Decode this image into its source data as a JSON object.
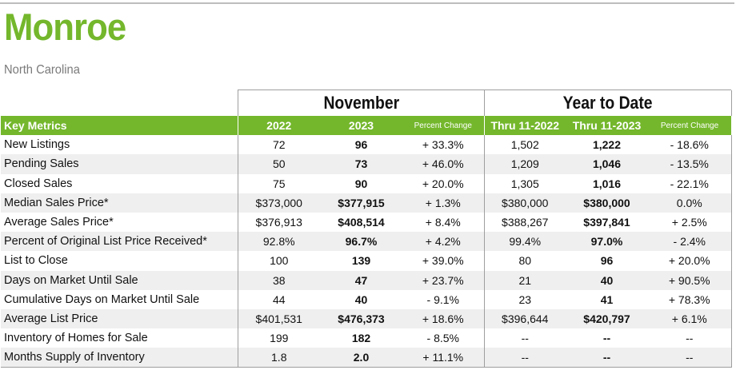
{
  "title": "Monroe",
  "subtitle": "North Carolina",
  "groups": {
    "month": "November",
    "ytd": "Year to Date"
  },
  "columns": {
    "key": "Key Metrics",
    "y2022": "2022",
    "y2023": "2023",
    "pct": "Percent Change",
    "ytd2022": "Thru 11-2022",
    "ytd2023": "Thru 11-2023",
    "ytd_pct": "Percent Change"
  },
  "rows": [
    {
      "label": "New Listings",
      "v2022": "72",
      "v2023": "96",
      "pct": "+ 33.3%",
      "ytd2022": "1,502",
      "ytd2023": "1,222",
      "ytd_pct": "- 18.6%"
    },
    {
      "label": "Pending Sales",
      "v2022": "50",
      "v2023": "73",
      "pct": "+ 46.0%",
      "ytd2022": "1,209",
      "ytd2023": "1,046",
      "ytd_pct": "- 13.5%"
    },
    {
      "label": "Closed Sales",
      "v2022": "75",
      "v2023": "90",
      "pct": "+ 20.0%",
      "ytd2022": "1,305",
      "ytd2023": "1,016",
      "ytd_pct": "- 22.1%"
    },
    {
      "label": "Median Sales Price*",
      "v2022": "$373,000",
      "v2023": "$377,915",
      "pct": "+ 1.3%",
      "ytd2022": "$380,000",
      "ytd2023": "$380,000",
      "ytd_pct": "0.0%"
    },
    {
      "label": "Average Sales Price*",
      "v2022": "$376,913",
      "v2023": "$408,514",
      "pct": "+ 8.4%",
      "ytd2022": "$388,267",
      "ytd2023": "$397,841",
      "ytd_pct": "+ 2.5%"
    },
    {
      "label": "Percent of Original List Price Received*",
      "v2022": "92.8%",
      "v2023": "96.7%",
      "pct": "+ 4.2%",
      "ytd2022": "99.4%",
      "ytd2023": "97.0%",
      "ytd_pct": "- 2.4%"
    },
    {
      "label": "List to Close",
      "v2022": "100",
      "v2023": "139",
      "pct": "+ 39.0%",
      "ytd2022": "80",
      "ytd2023": "96",
      "ytd_pct": "+ 20.0%"
    },
    {
      "label": "Days on Market Until Sale",
      "v2022": "38",
      "v2023": "47",
      "pct": "+ 23.7%",
      "ytd2022": "21",
      "ytd2023": "40",
      "ytd_pct": "+ 90.5%"
    },
    {
      "label": "Cumulative Days on Market Until Sale",
      "v2022": "44",
      "v2023": "40",
      "pct": "- 9.1%",
      "ytd2022": "23",
      "ytd2023": "41",
      "ytd_pct": "+ 78.3%"
    },
    {
      "label": "Average List Price",
      "v2022": "$401,531",
      "v2023": "$476,373",
      "pct": "+ 18.6%",
      "ytd2022": "$396,644",
      "ytd2023": "$420,797",
      "ytd_pct": "+ 6.1%"
    },
    {
      "label": "Inventory of Homes for Sale",
      "v2022": "199",
      "v2023": "182",
      "pct": "- 8.5%",
      "ytd2022": "--",
      "ytd2023": "--",
      "ytd_pct": "--"
    },
    {
      "label": "Months Supply of Inventory",
      "v2022": "1.8",
      "v2023": "2.0",
      "pct": "+ 11.1%",
      "ytd2022": "--",
      "ytd2023": "--",
      "ytd_pct": "--"
    }
  ],
  "colors": {
    "brand_green": "#74b72c",
    "row_alt": "#efefef",
    "subtitle_gray": "#7a7a7a"
  }
}
